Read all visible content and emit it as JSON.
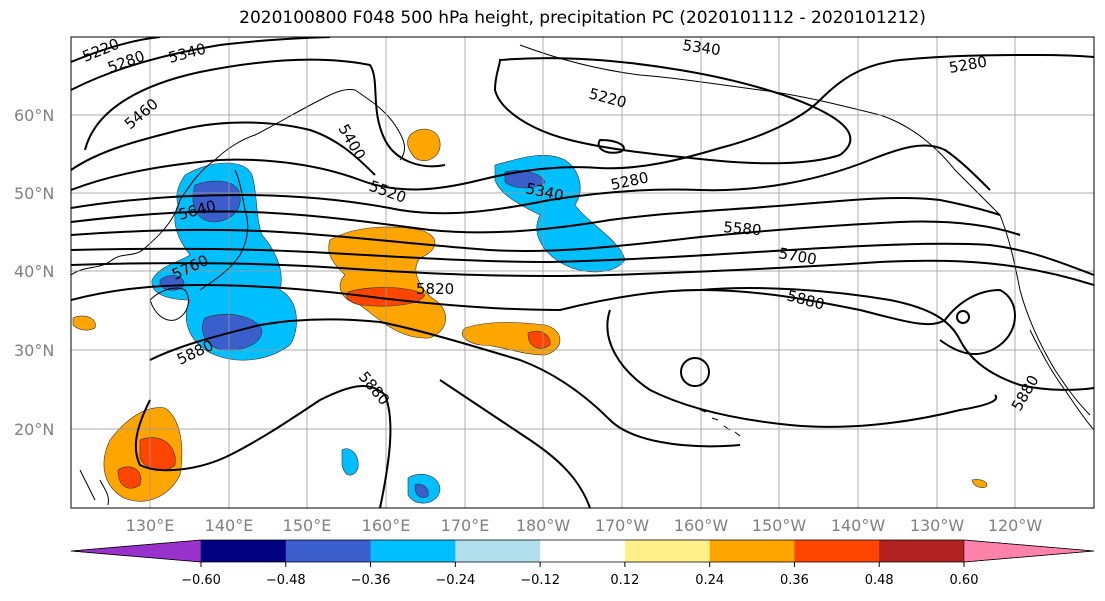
{
  "title": "2020100800 F048 500 hPa height, precipitation PC (2020101112 - 2020101212)",
  "lat_labels": [
    "60°N",
    "50°N",
    "40°N",
    "30°N",
    "20°N"
  ],
  "lon_labels": [
    "130°E",
    "140°E",
    "150°E",
    "160°E",
    "170°E",
    "180°W",
    "170°W",
    "160°W",
    "150°W",
    "140°W",
    "130°W",
    "120°W"
  ],
  "contour_labels": [
    "5220",
    "5280",
    "5340",
    "5460",
    "5400",
    "5520",
    "5640",
    "5760",
    "5820",
    "5880",
    "5880",
    "5340",
    "5220",
    "5280",
    "5340",
    "5580",
    "5700",
    "5880",
    "5280",
    "5880"
  ],
  "colorbar": {
    "colors": [
      "#9932cc",
      "#000080",
      "#3a5fcd",
      "#00bfff",
      "#b2dfee",
      "#ffffff",
      "#fff08a",
      "#ffa500",
      "#ff4500",
      "#b22222",
      "#ff82ab"
    ],
    "tick_labels": [
      "−0.60",
      "−0.48",
      "−0.36",
      "−0.24",
      "−0.12",
      "0.12",
      "0.24",
      "0.36",
      "0.48",
      "0.60"
    ]
  }
}
